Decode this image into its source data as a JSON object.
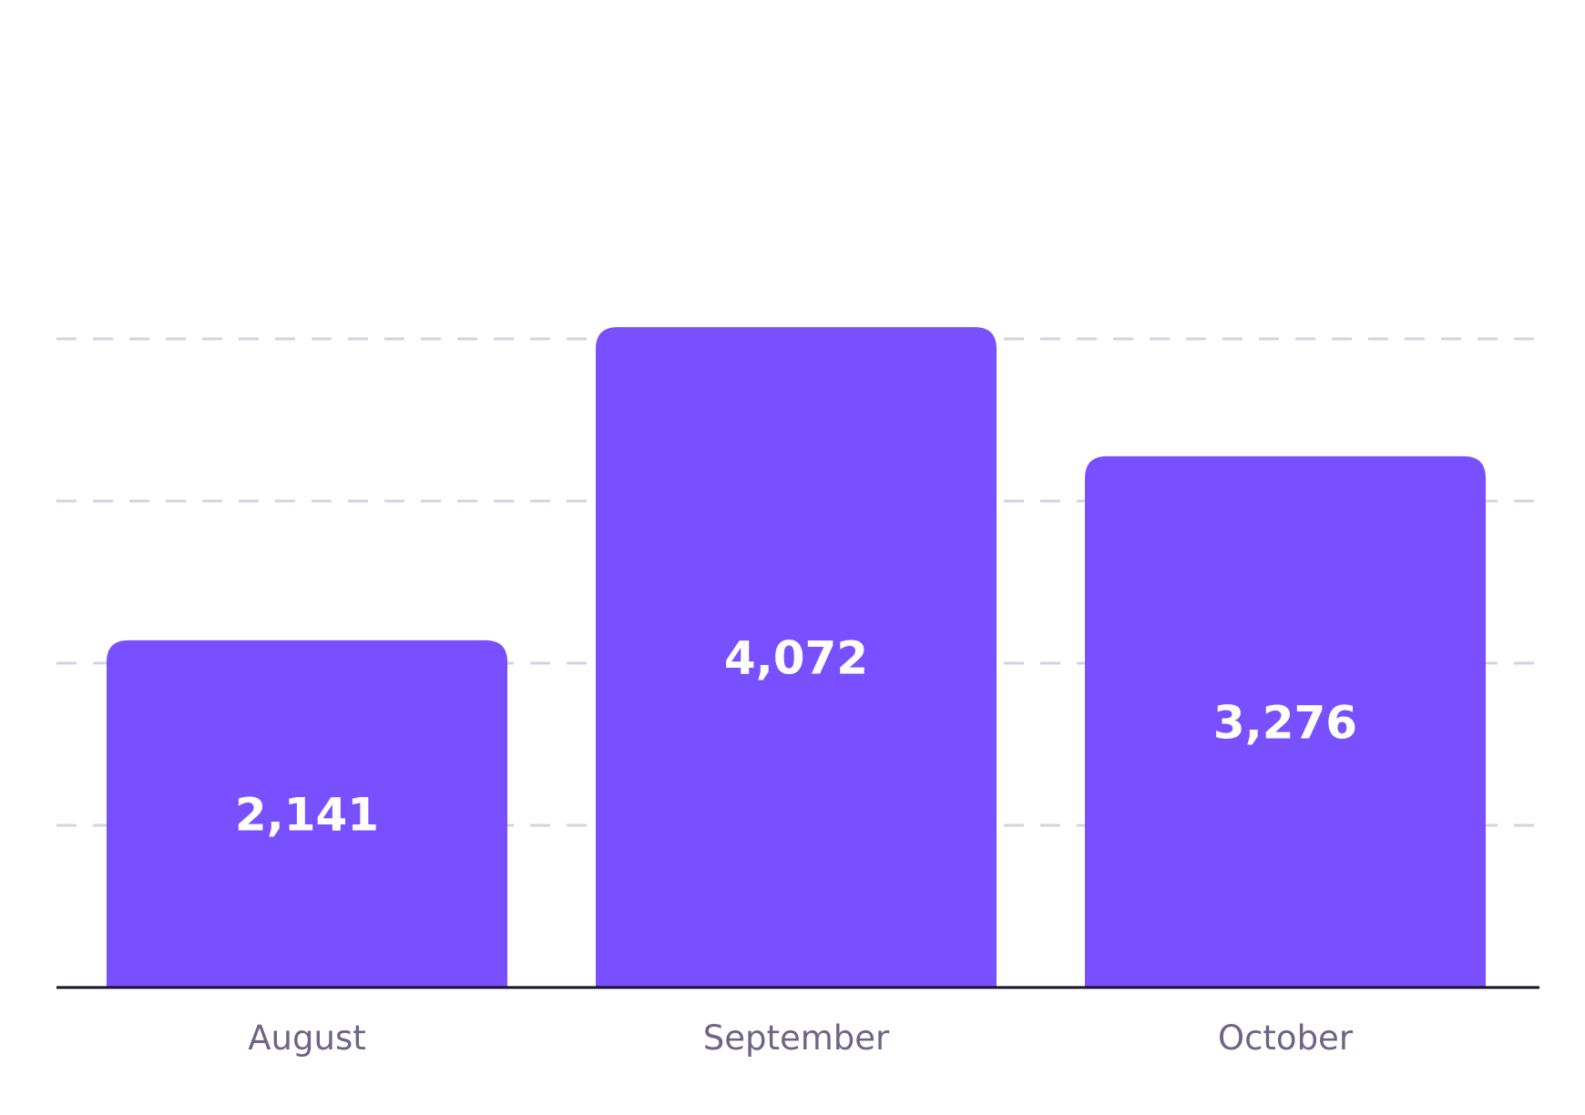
{
  "chart_data": {
    "type": "bar",
    "title": "",
    "xlabel": "",
    "ylabel": "",
    "categories": [
      "August",
      "September",
      "October"
    ],
    "values": [
      2141,
      4072,
      3276
    ],
    "value_labels": [
      "2,141",
      "4,072",
      "3,276"
    ],
    "ylim": [
      0,
      6000
    ],
    "y_gridlines": [
      1000,
      2000,
      3000,
      4000
    ],
    "y_tick_labels_shown": false,
    "grid": true,
    "grid_style": "dashed",
    "legend": "none"
  },
  "colors": {
    "bar": "#7950ff",
    "bar_label": "#ffffff",
    "axis_line": "#1c0f2e",
    "gridline": "#d3d3e2",
    "tick_label": "#6e6486",
    "background": "#ffffff"
  }
}
